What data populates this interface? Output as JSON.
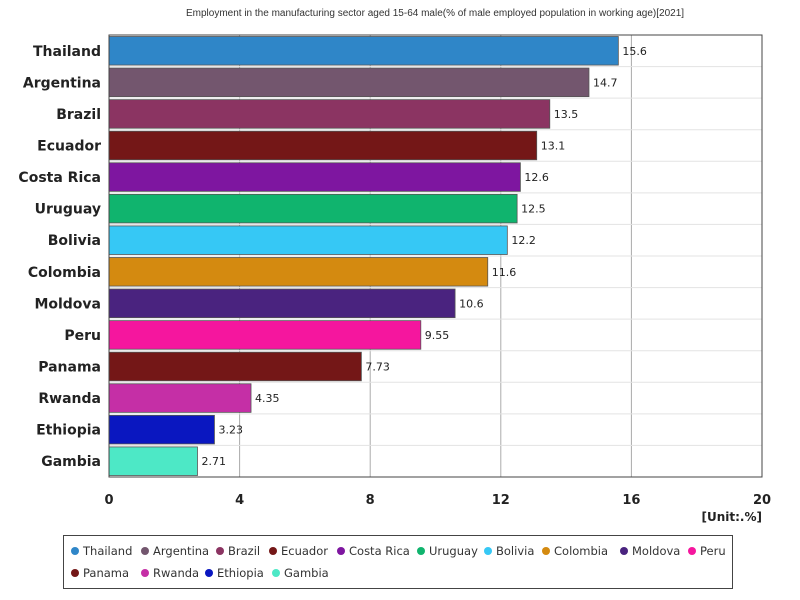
{
  "chart_data": {
    "type": "bar",
    "orientation": "horizontal",
    "title": "Employment in the manufacturing sector aged 15-64 male(% of male employed population in working age)[2021]",
    "unit_label": "[Unit:.%]",
    "xlim": [
      0,
      20
    ],
    "xticks": [
      0,
      4,
      8,
      12,
      16,
      20
    ],
    "grid": true,
    "legend_position": "bottom",
    "categories": [
      "Thailand",
      "Argentina",
      "Brazil",
      "Ecuador",
      "Costa Rica",
      "Uruguay",
      "Bolivia",
      "Colombia",
      "Moldova",
      "Peru",
      "Panama",
      "Rwanda",
      "Ethiopia",
      "Gambia"
    ],
    "values": [
      15.6,
      14.7,
      13.5,
      13.1,
      12.6,
      12.5,
      12.2,
      11.6,
      10.6,
      9.55,
      7.73,
      4.35,
      3.23,
      2.71
    ],
    "value_labels": [
      "15.6",
      "14.7",
      "13.5",
      "13.1",
      "12.6",
      "12.5",
      "12.2",
      "11.6",
      "10.6",
      "9.55",
      "7.73",
      "4.35",
      "3.23",
      "2.71"
    ],
    "colors": [
      "#2f86c8",
      "#73566e",
      "#8b3462",
      "#741717",
      "#7e16a0",
      "#10b46e",
      "#36c8f5",
      "#d48a10",
      "#4a237f",
      "#f5169e",
      "#741717",
      "#c52fa6",
      "#0a17c0",
      "#4de8c6"
    ]
  }
}
